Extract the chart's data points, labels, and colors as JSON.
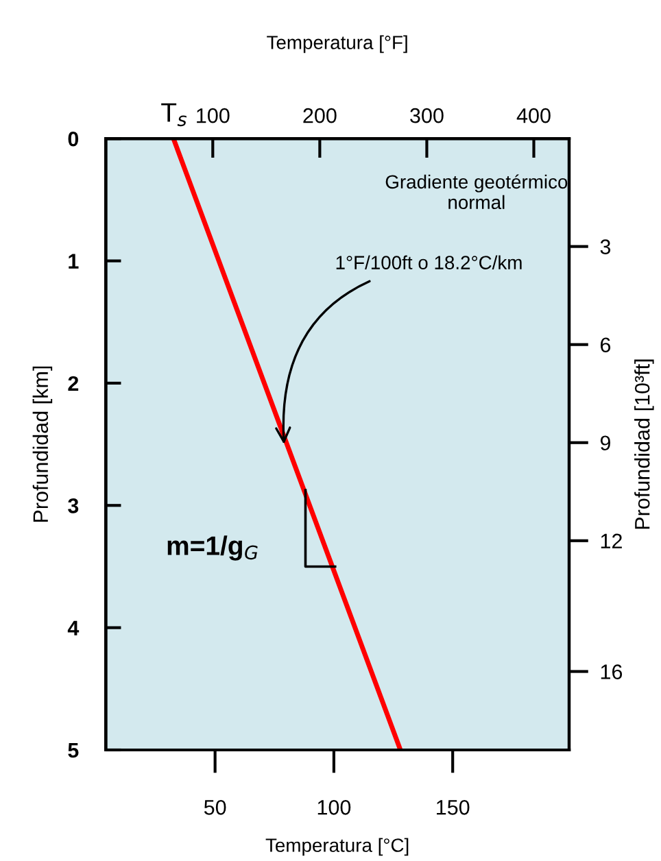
{
  "chart_data": {
    "type": "line",
    "xlabel": "Temperatura [°C]",
    "x2label": "Temperatura [°F]",
    "ylabel": "Profundidad [km]",
    "y2label": "Profundidad [10³ft]",
    "series": [
      {
        "x": [
          32.5,
          128
        ],
        "values": [
          0,
          5
        ],
        "color": "#ff0000"
      }
    ],
    "xlim": [
      4,
      199
    ],
    "xticks": [
      50,
      100,
      150
    ],
    "x2lim": [
      0,
      433
    ],
    "x2ticks": [
      {
        "value": 64,
        "label": "T$_{s}$"
      },
      100,
      200,
      300,
      400
    ],
    "ylim": [
      5,
      0
    ],
    "yticks": [
      0,
      1,
      2,
      3,
      4,
      5
    ],
    "y2lim": [
      18.4,
      -0.3
    ],
    "y2ticks": [
      3,
      6,
      9,
      12,
      16
    ],
    "grid": false,
    "legend": false,
    "marker": "none",
    "line_style": "solid",
    "annotations": [
      "Gradiente geotérmico\nnormal",
      {
        "text": "1°F/100ft o 18.2°C/km",
        "x": 79,
        "y": 2.5
      },
      "m=1/g$_{G}$"
    ]
  }
}
